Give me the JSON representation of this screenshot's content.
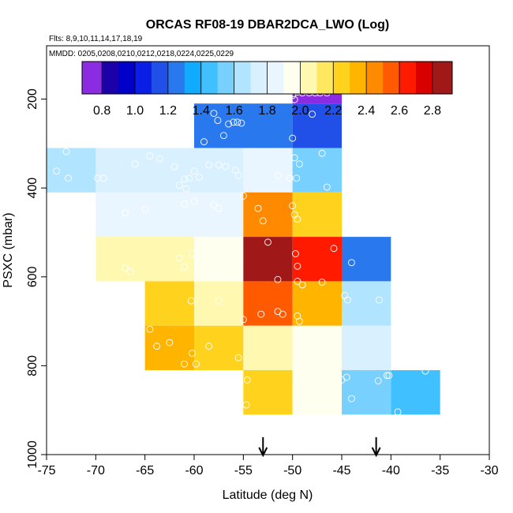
{
  "chart_data": {
    "type": "heatmap",
    "title": "ORCAS RF08-19 DBAR2DCA_LWO (Log)",
    "subtitle_flights": "Flts: 8,9,10,11,14,17,18,19",
    "subtitle_dates": "MMDD: 0205,0208,0210,0212,0218,0224,0225,0229",
    "xlabel": "Latitude (deg N)",
    "ylabel": "PSXC (mbar)",
    "xlim": [
      -75,
      -30
    ],
    "ylim": [
      1000,
      80
    ],
    "x_ticks": [
      -75,
      -70,
      -65,
      -60,
      -55,
      -50,
      -45,
      -40,
      -35,
      -30
    ],
    "x_tick_labels": [
      "-75",
      "-70",
      "-65",
      "-60",
      "-55",
      "-50",
      "-45",
      "-40",
      "-35",
      "-30"
    ],
    "y_ticks": [
      200,
      400,
      600,
      800,
      1000
    ],
    "y_tick_labels": [
      "200",
      "400",
      "600",
      "800",
      "1000"
    ],
    "colorbar": {
      "min": 0.68,
      "max": 2.92,
      "ticks": [
        0.8,
        1.0,
        1.2,
        1.4,
        1.6,
        1.8,
        2.0,
        2.2,
        2.4,
        2.6,
        2.8
      ],
      "tick_labels": [
        "0.8",
        "1.0",
        "1.2",
        "1.4",
        "1.6",
        "1.8",
        "2.0",
        "2.2",
        "2.4",
        "2.6",
        "2.8"
      ],
      "bin_edges": [
        0.68,
        0.8,
        0.9,
        1.0,
        1.1,
        1.2,
        1.3,
        1.4,
        1.5,
        1.6,
        1.7,
        1.8,
        1.9,
        2.0,
        2.1,
        2.2,
        2.3,
        2.4,
        2.5,
        2.6,
        2.7,
        2.8,
        2.92
      ],
      "bin_colors": [
        "#8b2be2",
        "#1c00a8",
        "#0000c8",
        "#0a1ee6",
        "#2050e8",
        "#2a78ee",
        "#10aaff",
        "#40c0ff",
        "#78d0ff",
        "#b0e4ff",
        "#d8f0ff",
        "#eaf6ff",
        "#fffff0",
        "#fff8b0",
        "#ffe760",
        "#ffd21e",
        "#ffb400",
        "#ff8a00",
        "#ff5a00",
        "#ff1a00",
        "#d80000",
        "#a01818"
      ]
    },
    "cells": [
      {
        "x0": -50,
        "x1": -45,
        "y0": 120,
        "y1": 210,
        "value": 0.75
      },
      {
        "x0": -60,
        "x1": -50,
        "y0": 210,
        "y1": 310,
        "value": 1.25
      },
      {
        "x0": -50,
        "x1": -45,
        "y0": 210,
        "y1": 310,
        "value": 1.15
      },
      {
        "x0": -75,
        "x1": -70,
        "y0": 310,
        "y1": 410,
        "value": 1.65
      },
      {
        "x0": -70,
        "x1": -60,
        "y0": 310,
        "y1": 410,
        "value": 1.72
      },
      {
        "x0": -60,
        "x1": -55,
        "y0": 310,
        "y1": 410,
        "value": 1.78
      },
      {
        "x0": -55,
        "x1": -50,
        "y0": 310,
        "y1": 410,
        "value": 1.82
      },
      {
        "x0": -50,
        "x1": -45,
        "y0": 310,
        "y1": 410,
        "value": 1.55
      },
      {
        "x0": -70,
        "x1": -55,
        "y0": 410,
        "y1": 510,
        "value": 1.85
      },
      {
        "x0": -55,
        "x1": -50,
        "y0": 410,
        "y1": 510,
        "value": 2.45
      },
      {
        "x0": -50,
        "x1": -45,
        "y0": 410,
        "y1": 510,
        "value": 2.25
      },
      {
        "x0": -70,
        "x1": -60,
        "y0": 510,
        "y1": 610,
        "value": 2.05
      },
      {
        "x0": -60,
        "x1": -55,
        "y0": 510,
        "y1": 610,
        "value": 1.95
      },
      {
        "x0": -55,
        "x1": -50,
        "y0": 510,
        "y1": 610,
        "value": 2.85
      },
      {
        "x0": -50,
        "x1": -45,
        "y0": 510,
        "y1": 610,
        "value": 2.65
      },
      {
        "x0": -45,
        "x1": -40,
        "y0": 510,
        "y1": 610,
        "value": 1.25
      },
      {
        "x0": -65,
        "x1": -60,
        "y0": 610,
        "y1": 710,
        "value": 2.25
      },
      {
        "x0": -60,
        "x1": -55,
        "y0": 610,
        "y1": 710,
        "value": 2.05
      },
      {
        "x0": -55,
        "x1": -50,
        "y0": 610,
        "y1": 710,
        "value": 2.55
      },
      {
        "x0": -50,
        "x1": -45,
        "y0": 610,
        "y1": 710,
        "value": 2.35
      },
      {
        "x0": -45,
        "x1": -40,
        "y0": 610,
        "y1": 710,
        "value": 1.65
      },
      {
        "x0": -65,
        "x1": -60,
        "y0": 710,
        "y1": 810,
        "value": 2.35
      },
      {
        "x0": -60,
        "x1": -55,
        "y0": 710,
        "y1": 810,
        "value": 2.25
      },
      {
        "x0": -55,
        "x1": -50,
        "y0": 710,
        "y1": 810,
        "value": 2.05
      },
      {
        "x0": -50,
        "x1": -45,
        "y0": 710,
        "y1": 810,
        "value": 1.9
      },
      {
        "x0": -45,
        "x1": -40,
        "y0": 710,
        "y1": 810,
        "value": 1.75
      },
      {
        "x0": -55,
        "x1": -50,
        "y0": 810,
        "y1": 910,
        "value": 2.25
      },
      {
        "x0": -50,
        "x1": -45,
        "y0": 810,
        "y1": 910,
        "value": 1.9
      },
      {
        "x0": -45,
        "x1": -40,
        "y0": 810,
        "y1": 910,
        "value": 1.55
      },
      {
        "x0": -40,
        "x1": -35,
        "y0": 810,
        "y1": 910,
        "value": 1.4
      }
    ],
    "points": [
      [
        -50,
        178
      ],
      [
        -49.5,
        184
      ],
      [
        -49,
        186
      ],
      [
        -48.3,
        186
      ],
      [
        -47.7,
        186
      ],
      [
        -47.2,
        186
      ],
      [
        -46.5,
        186
      ],
      [
        -50,
        192
      ],
      [
        -49.8,
        201
      ],
      [
        -58,
        232
      ],
      [
        -57.6,
        248
      ],
      [
        -56.5,
        256
      ],
      [
        -56,
        252
      ],
      [
        -55.6,
        252
      ],
      [
        -55.2,
        254
      ],
      [
        -59,
        296
      ],
      [
        -57,
        282
      ],
      [
        -50,
        288
      ],
      [
        -48,
        234
      ],
      [
        -73,
        318
      ],
      [
        -74,
        362
      ],
      [
        -72.8,
        378
      ],
      [
        -69.8,
        378
      ],
      [
        -69.2,
        378
      ],
      [
        -66,
        346
      ],
      [
        -64.5,
        328
      ],
      [
        -63.5,
        334
      ],
      [
        -62,
        352
      ],
      [
        -61,
        380
      ],
      [
        -60.5,
        378
      ],
      [
        -60,
        362
      ],
      [
        -59.5,
        376
      ],
      [
        -58.5,
        348
      ],
      [
        -57.5,
        348
      ],
      [
        -56.8,
        352
      ],
      [
        -55.8,
        360
      ],
      [
        -55.5,
        372
      ],
      [
        -50.3,
        378
      ],
      [
        -49.6,
        378
      ],
      [
        -49.8,
        332
      ],
      [
        -49.3,
        346
      ],
      [
        -47,
        322
      ],
      [
        -61.5,
        394
      ],
      [
        -60.8,
        402
      ],
      [
        -55,
        418
      ],
      [
        -51.5,
        372
      ],
      [
        -46.5,
        398
      ],
      [
        -67,
        456
      ],
      [
        -65,
        448
      ],
      [
        -61,
        436
      ],
      [
        -60,
        430
      ],
      [
        -58,
        438
      ],
      [
        -57.5,
        446
      ],
      [
        -53.5,
        446
      ],
      [
        -53,
        474
      ],
      [
        -50,
        440
      ],
      [
        -49.8,
        460
      ],
      [
        -49.5,
        470
      ],
      [
        -67,
        580
      ],
      [
        -66.5,
        588
      ],
      [
        -61.5,
        558
      ],
      [
        -61,
        578
      ],
      [
        -60.2,
        548
      ],
      [
        -52.5,
        522
      ],
      [
        -49.7,
        548
      ],
      [
        -49.5,
        576
      ],
      [
        -45.8,
        536
      ],
      [
        -44,
        568
      ],
      [
        -55.5,
        600
      ],
      [
        -51.5,
        606
      ],
      [
        -49.5,
        610
      ],
      [
        -49,
        618
      ],
      [
        -47,
        612
      ],
      [
        -44.7,
        642
      ],
      [
        -44.4,
        652
      ],
      [
        -41.2,
        652
      ],
      [
        -60.3,
        654
      ],
      [
        -57.5,
        654
      ],
      [
        -55,
        696
      ],
      [
        -53.2,
        684
      ],
      [
        -51.5,
        678
      ],
      [
        -51,
        684
      ],
      [
        -49.5,
        688
      ],
      [
        -49.3,
        700
      ],
      [
        -64.5,
        718
      ],
      [
        -63.8,
        756
      ],
      [
        -62.5,
        748
      ],
      [
        -61,
        796
      ],
      [
        -60.2,
        772
      ],
      [
        -59.8,
        796
      ],
      [
        -58.5,
        756
      ],
      [
        -55.5,
        782
      ],
      [
        -54.6,
        832
      ],
      [
        -54.7,
        888
      ],
      [
        -45,
        832
      ],
      [
        -44.5,
        826
      ],
      [
        -44,
        874
      ],
      [
        -41.3,
        834
      ],
      [
        -40.4,
        822
      ],
      [
        -40.2,
        822
      ],
      [
        -39.3,
        904
      ],
      [
        -36.5,
        812
      ]
    ],
    "arrows_latitude": [
      -53,
      -41.5
    ]
  }
}
